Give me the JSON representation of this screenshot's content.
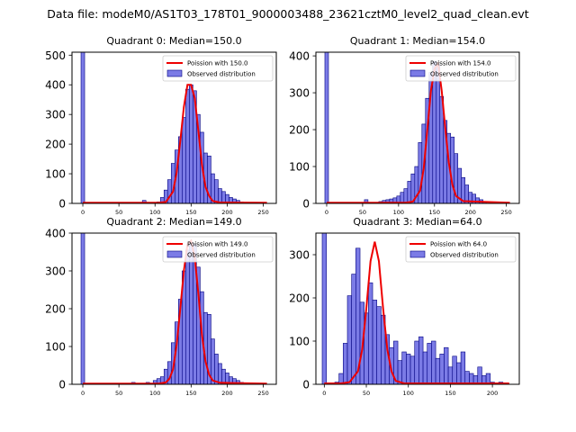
{
  "figure_title": "Data file: modeM0/AS1T03_178T01_9000003488_23621cztM0_level2_quad_clean.evt",
  "colors": {
    "bar_fill": "#7b7be6",
    "bar_edge": "#000080",
    "poisson_line": "#ee0000",
    "axis": "#000000",
    "background": "#ffffff"
  },
  "chart_data": [
    {
      "type": "bar",
      "title": "Quadrant 0: Median=150.0",
      "bin_width": 5,
      "xlim": [
        -15,
        268
      ],
      "ylim": [
        0,
        510
      ],
      "xticks": [
        0,
        50,
        100,
        150,
        200,
        250
      ],
      "yticks": [
        0,
        100,
        200,
        300,
        400,
        500
      ],
      "legend": {
        "position": "top-right",
        "line_label": "Poission with 150.0",
        "bar_label": "Observed distribution"
      },
      "observed": [
        [
          0,
          510
        ],
        [
          85,
          10
        ],
        [
          105,
          5
        ],
        [
          110,
          20
        ],
        [
          115,
          45
        ],
        [
          120,
          80
        ],
        [
          125,
          135
        ],
        [
          130,
          180
        ],
        [
          135,
          225
        ],
        [
          140,
          290
        ],
        [
          145,
          385
        ],
        [
          150,
          400
        ],
        [
          155,
          380
        ],
        [
          160,
          300
        ],
        [
          165,
          240
        ],
        [
          170,
          170
        ],
        [
          175,
          160
        ],
        [
          180,
          100
        ],
        [
          185,
          80
        ],
        [
          190,
          50
        ],
        [
          195,
          40
        ],
        [
          200,
          30
        ],
        [
          205,
          20
        ],
        [
          210,
          15
        ],
        [
          215,
          10
        ],
        [
          220,
          5
        ]
      ],
      "poisson": [
        [
          0,
          2
        ],
        [
          105,
          2
        ],
        [
          115,
          5
        ],
        [
          125,
          40
        ],
        [
          130,
          105
        ],
        [
          135,
          210
        ],
        [
          140,
          325
        ],
        [
          145,
          400
        ],
        [
          150,
          400
        ],
        [
          155,
          355
        ],
        [
          160,
          245
        ],
        [
          165,
          130
        ],
        [
          170,
          55
        ],
        [
          175,
          25
        ],
        [
          180,
          8
        ],
        [
          190,
          3
        ],
        [
          255,
          2
        ]
      ]
    },
    {
      "type": "bar",
      "title": "Quadrant 1: Median=154.0",
      "bin_width": 5,
      "xlim": [
        -15,
        268
      ],
      "ylim": [
        0,
        410
      ],
      "xticks": [
        0,
        50,
        100,
        150,
        200,
        250
      ],
      "yticks": [
        0,
        100,
        200,
        300,
        400
      ],
      "legend": {
        "position": "top-right",
        "line_label": "Poission with 154.0",
        "bar_label": "Observed distribution"
      },
      "observed": [
        [
          0,
          410
        ],
        [
          55,
          10
        ],
        [
          75,
          5
        ],
        [
          80,
          8
        ],
        [
          85,
          10
        ],
        [
          90,
          12
        ],
        [
          95,
          15
        ],
        [
          100,
          20
        ],
        [
          105,
          30
        ],
        [
          110,
          40
        ],
        [
          115,
          60
        ],
        [
          120,
          80
        ],
        [
          125,
          100
        ],
        [
          130,
          165
        ],
        [
          135,
          215
        ],
        [
          140,
          285
        ],
        [
          145,
          355
        ],
        [
          150,
          385
        ],
        [
          155,
          375
        ],
        [
          160,
          290
        ],
        [
          165,
          225
        ],
        [
          170,
          190
        ],
        [
          175,
          180
        ],
        [
          180,
          135
        ],
        [
          185,
          95
        ],
        [
          190,
          70
        ],
        [
          195,
          50
        ],
        [
          200,
          30
        ],
        [
          205,
          25
        ],
        [
          210,
          15
        ],
        [
          215,
          10
        ],
        [
          220,
          5
        ]
      ],
      "poisson": [
        [
          0,
          2
        ],
        [
          110,
          2
        ],
        [
          120,
          5
        ],
        [
          130,
          35
        ],
        [
          135,
          95
        ],
        [
          140,
          200
        ],
        [
          145,
          305
        ],
        [
          150,
          365
        ],
        [
          155,
          380
        ],
        [
          160,
          305
        ],
        [
          165,
          205
        ],
        [
          170,
          110
        ],
        [
          175,
          50
        ],
        [
          180,
          20
        ],
        [
          190,
          6
        ],
        [
          255,
          2
        ]
      ]
    },
    {
      "type": "bar",
      "title": "Quadrant 2: Median=149.0",
      "bin_width": 5,
      "xlim": [
        -15,
        268
      ],
      "ylim": [
        0,
        400
      ],
      "xticks": [
        0,
        50,
        100,
        150,
        200,
        250
      ],
      "yticks": [
        0,
        100,
        200,
        300,
        400
      ],
      "legend": {
        "position": "top-right",
        "line_label": "Poission with 149.0",
        "bar_label": "Observed distribution"
      },
      "observed": [
        [
          0,
          400
        ],
        [
          70,
          5
        ],
        [
          90,
          5
        ],
        [
          100,
          10
        ],
        [
          105,
          15
        ],
        [
          110,
          20
        ],
        [
          115,
          40
        ],
        [
          120,
          60
        ],
        [
          125,
          110
        ],
        [
          130,
          165
        ],
        [
          135,
          225
        ],
        [
          140,
          300
        ],
        [
          145,
          355
        ],
        [
          150,
          375
        ],
        [
          155,
          370
        ],
        [
          160,
          310
        ],
        [
          165,
          245
        ],
        [
          170,
          190
        ],
        [
          175,
          185
        ],
        [
          180,
          120
        ],
        [
          185,
          80
        ],
        [
          190,
          55
        ],
        [
          195,
          40
        ],
        [
          200,
          30
        ],
        [
          205,
          20
        ],
        [
          210,
          15
        ],
        [
          215,
          10
        ],
        [
          220,
          5
        ]
      ],
      "poisson": [
        [
          0,
          2
        ],
        [
          105,
          2
        ],
        [
          115,
          5
        ],
        [
          120,
          15
        ],
        [
          125,
          40
        ],
        [
          130,
          105
        ],
        [
          135,
          200
        ],
        [
          140,
          300
        ],
        [
          145,
          370
        ],
        [
          150,
          380
        ],
        [
          155,
          335
        ],
        [
          160,
          240
        ],
        [
          165,
          130
        ],
        [
          170,
          60
        ],
        [
          175,
          25
        ],
        [
          180,
          10
        ],
        [
          190,
          4
        ],
        [
          255,
          2
        ]
      ]
    },
    {
      "type": "bar",
      "title": "Quadrant 3: Median=64.0",
      "bin_width": 5,
      "xlim": [
        -10,
        232
      ],
      "ylim": [
        0,
        350
      ],
      "xticks": [
        0,
        50,
        100,
        150,
        200
      ],
      "yticks": [
        0,
        100,
        200,
        300
      ],
      "legend": {
        "position": "top-right",
        "line_label": "Poission with 64.0",
        "bar_label": "Observed distribution"
      },
      "observed": [
        [
          0,
          350
        ],
        [
          15,
          5
        ],
        [
          20,
          25
        ],
        [
          25,
          95
        ],
        [
          30,
          205
        ],
        [
          35,
          255
        ],
        [
          40,
          315
        ],
        [
          45,
          190
        ],
        [
          50,
          165
        ],
        [
          55,
          235
        ],
        [
          60,
          195
        ],
        [
          65,
          180
        ],
        [
          70,
          160
        ],
        [
          75,
          115
        ],
        [
          80,
          85
        ],
        [
          85,
          100
        ],
        [
          90,
          55
        ],
        [
          95,
          75
        ],
        [
          100,
          70
        ],
        [
          105,
          65
        ],
        [
          110,
          100
        ],
        [
          115,
          110
        ],
        [
          120,
          75
        ],
        [
          125,
          95
        ],
        [
          130,
          100
        ],
        [
          135,
          60
        ],
        [
          140,
          70
        ],
        [
          145,
          85
        ],
        [
          150,
          40
        ],
        [
          155,
          65
        ],
        [
          160,
          50
        ],
        [
          165,
          75
        ],
        [
          170,
          30
        ],
        [
          175,
          25
        ],
        [
          180,
          20
        ],
        [
          185,
          40
        ],
        [
          190,
          20
        ],
        [
          195,
          25
        ],
        [
          200,
          5
        ],
        [
          210,
          5
        ]
      ],
      "poisson": [
        [
          0,
          2
        ],
        [
          20,
          2
        ],
        [
          30,
          5
        ],
        [
          40,
          30
        ],
        [
          45,
          80
        ],
        [
          50,
          175
        ],
        [
          55,
          285
        ],
        [
          60,
          330
        ],
        [
          65,
          285
        ],
        [
          70,
          175
        ],
        [
          75,
          80
        ],
        [
          80,
          30
        ],
        [
          85,
          8
        ],
        [
          95,
          2
        ],
        [
          220,
          2
        ]
      ]
    }
  ]
}
